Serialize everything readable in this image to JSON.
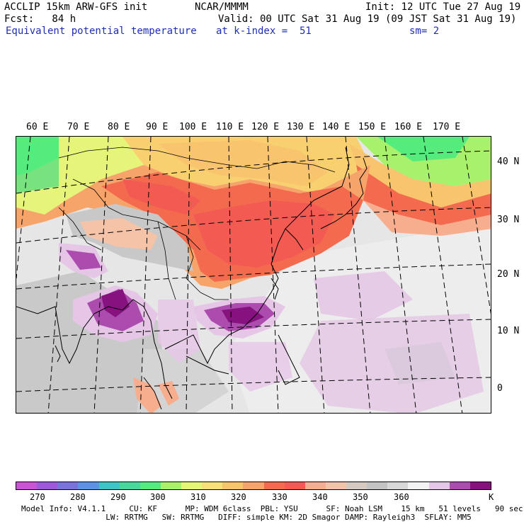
{
  "header": {
    "model": "ACCLIP 15km ARW-GFS init",
    "org": "NCAR/MMMM",
    "init": "Init: 12 UTC Tue 27 Aug 19",
    "fcst": "Fcst:   84 h",
    "valid": "Valid: 00 UTC Sat 31 Aug 19 (09 JST Sat 31 Aug 19)",
    "field": "Equivalent potential temperature",
    "level": "at k-index =  51",
    "smooth": "sm= 2"
  },
  "longitude_labels": [
    "60 E",
    "70 E",
    "80 E",
    "90 E",
    "100 E",
    "110 E",
    "120 E",
    "130 E",
    "140 E",
    "150 E",
    "160 E",
    "170 E"
  ],
  "latitude_labels": [
    "40 N",
    "30 N",
    "20 N",
    "10 N",
    "0"
  ],
  "colorbar": {
    "colors": [
      "#c855d6",
      "#9f5ad8",
      "#7b74d8",
      "#5d93e3",
      "#3ec3c7",
      "#4ad79b",
      "#55ec7d",
      "#a8f16c",
      "#e6f57a",
      "#f7e07c",
      "#f8c46e",
      "#f7a46a",
      "#f46a4f",
      "#f25a52",
      "#f6ae8f",
      "#f5c4a8",
      "#d6c9c0",
      "#c3c3c3",
      "#d8d8d8",
      "#f2f2f2",
      "#e6c6e6",
      "#ac4cae",
      "#86127f"
    ],
    "labels": [
      "270",
      "280",
      "290",
      "300",
      "310",
      "320",
      "330",
      "340",
      "350",
      "360"
    ],
    "unit": "K"
  },
  "footer": {
    "line1": "Model Info: V4.1.1     CU: KF      MP: WDM 6class  PBL: YSU      SF: Noah LSM    15 km   51 levels   90 sec",
    "line2": "                  LW: RRTMG   SW: RRTMG   DIFF: simple KM: 2D Smagor DAMP: Rayleigh3  SFLAY: MM5"
  }
}
